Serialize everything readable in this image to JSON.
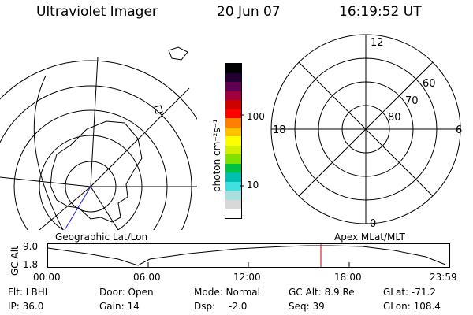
{
  "header": {
    "title": "Ultraviolet Imager",
    "date": "20 Jun 07",
    "time": "16:19:52 UT"
  },
  "geo_map": {
    "label": "Geographic Lat/Lon"
  },
  "apex_map": {
    "label": "Apex  MLat/MLT",
    "mlt_labels": [
      "12",
      "18",
      "6",
      "0"
    ],
    "mlat_labels": [
      "60",
      "70",
      "80"
    ]
  },
  "colorbar": {
    "unit_label": "photon cm⁻²s⁻¹",
    "ticks": [
      "100",
      "10"
    ],
    "colors": [
      "#ffffff",
      "#d8d8d8",
      "#a8e0e0",
      "#40e0e0",
      "#00c0b0",
      "#00c040",
      "#80e000",
      "#d0f000",
      "#ffff00",
      "#ffc000",
      "#ff8000",
      "#ff0000",
      "#d00000",
      "#a00040",
      "#600050",
      "#200030",
      "#000000"
    ]
  },
  "gc_alt": {
    "label": "GC Alt",
    "ytick_high": "9.0",
    "ytick_low": "1.8",
    "xticks": [
      "00:00",
      "06:00",
      "12:00",
      "18:00",
      "23:59"
    ],
    "marker_color": "#cc0000"
  },
  "info": {
    "filter": "Flt: LBHL",
    "ip": "IP: 36.0",
    "door": "Door: Open",
    "gain": "Gain: 14",
    "mode": "Mode: Normal",
    "dsp": "Dsp:",
    "dsp_value": "-2.0",
    "gc_alt": "GC Alt: 8.9 Re",
    "seq": "Seq: 39",
    "glat": "GLat: -71.2",
    "glon": "GLon: 108.4"
  }
}
